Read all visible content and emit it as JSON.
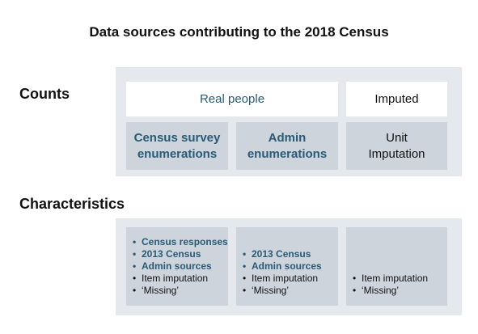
{
  "title": "Data sources contributing to the 2018 Census",
  "rows": {
    "counts": {
      "label": "Counts",
      "real_people": "Real people",
      "imputed": "Imputed",
      "census_survey": [
        "Census survey",
        "enumerations"
      ],
      "admin": [
        "Admin",
        "enumerations"
      ],
      "unit_imputation": [
        "Unit",
        "Imputation"
      ]
    },
    "characteristics": {
      "label": "Characteristics",
      "col1": [
        "Census responses",
        "2013 Census",
        "Admin sources",
        "Item imputation",
        "‘Missing’"
      ],
      "col2": [
        "2013 Census",
        "Admin sources",
        "Item imputation",
        "‘Missing’"
      ],
      "col3": [
        "Item imputation",
        "‘Missing’"
      ]
    }
  },
  "colors": {
    "panel": "#e5e8ec",
    "box": "#cdd4dc",
    "accent": "#2a5a75"
  }
}
